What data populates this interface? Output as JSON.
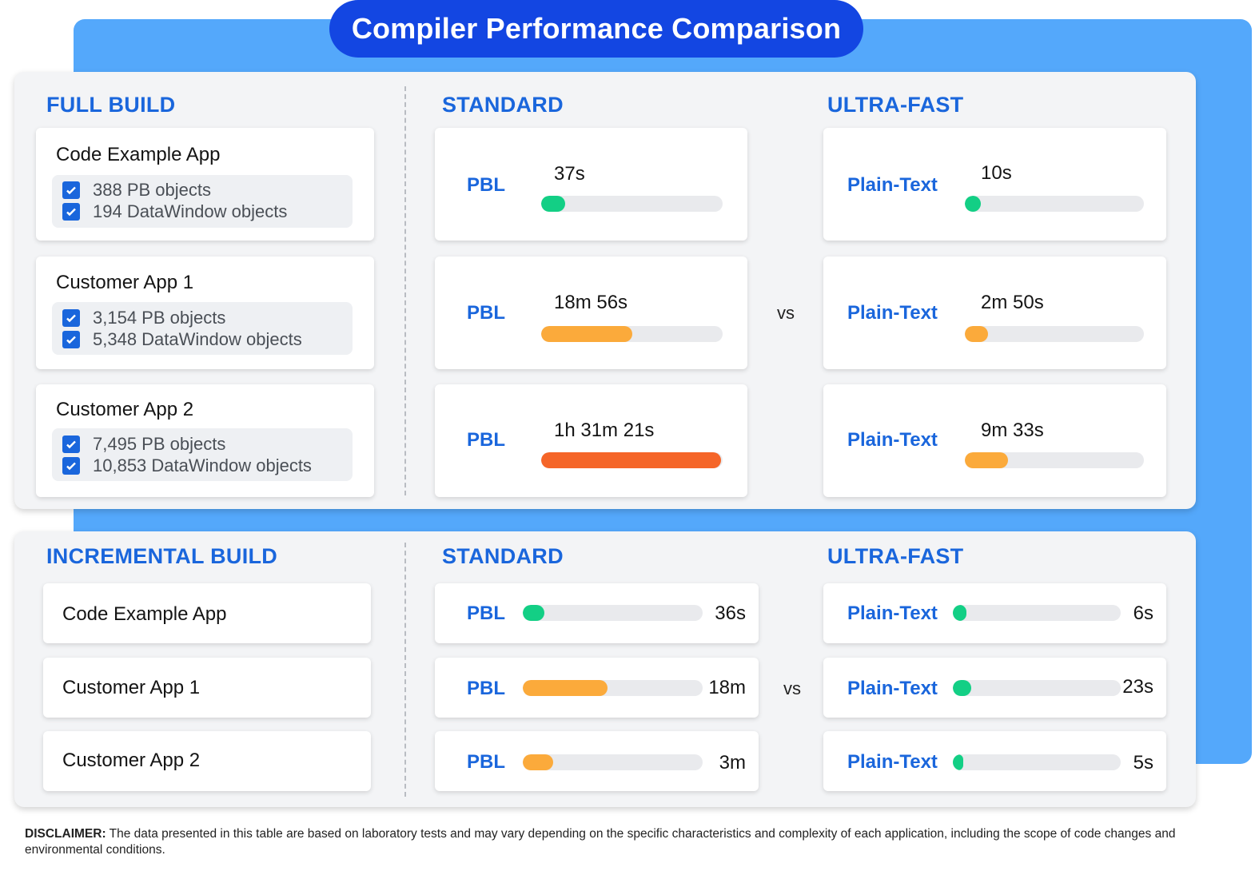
{
  "title": "Compiler Performance Comparison",
  "colors": {
    "accent_blue": "#1a66dc",
    "background_blue": "#54a8fb",
    "title_pill": "#1346e2",
    "green": "#13cf85",
    "orange": "#fbaa3b",
    "red_orange": "#f56528"
  },
  "full_build": {
    "section_title": "FULL BUILD",
    "standard_title": "STANDARD",
    "ultra_title": "ULTRA-FAST",
    "vs": "vs",
    "apps": [
      {
        "name": "Code Example App",
        "objects": [
          "388 PB objects",
          "194 DataWindow objects"
        ]
      },
      {
        "name": "Customer App 1",
        "objects": [
          "3,154 PB objects",
          "5,348 DataWindow objects"
        ]
      },
      {
        "name": "Customer App 2",
        "objects": [
          "7,495 PB objects",
          "10,853 DataWindow objects"
        ]
      }
    ]
  },
  "incremental_build": {
    "section_title": "INCREMENTAL BUILD",
    "standard_title": "STANDARD",
    "ultra_title": "ULTRA-FAST",
    "vs": "vs",
    "apps": [
      "Code Example App",
      "Customer App 1",
      "Customer App 2"
    ]
  },
  "chart_data": [
    {
      "type": "bar",
      "title": "FULL BUILD",
      "categories": [
        "Code Example App",
        "Customer App 1",
        "Customer App 2"
      ],
      "series": [
        {
          "name": "PBL",
          "labels": [
            "37s",
            "18m 56s",
            "1h 31m 21s"
          ],
          "values_seconds": [
            37,
            1136,
            5481
          ],
          "fill_fraction": [
            0.13,
            0.5,
            0.99
          ],
          "colors": [
            "#13cf85",
            "#fbaa3b",
            "#f56528"
          ]
        },
        {
          "name": "Plain-Text",
          "labels": [
            "10s",
            "2m 50s",
            "9m 33s"
          ],
          "values_seconds": [
            10,
            170,
            573
          ],
          "fill_fraction": [
            0.09,
            0.13,
            0.24
          ],
          "colors": [
            "#13cf85",
            "#fbaa3b",
            "#fbaa3b"
          ]
        }
      ]
    },
    {
      "type": "bar",
      "title": "INCREMENTAL BUILD",
      "categories": [
        "Code Example App",
        "Customer App 1",
        "Customer App 2"
      ],
      "series": [
        {
          "name": "PBL",
          "labels": [
            "36s",
            "18m",
            "3m"
          ],
          "values_seconds": [
            36,
            1080,
            180
          ],
          "fill_fraction": [
            0.12,
            0.47,
            0.17
          ],
          "colors": [
            "#13cf85",
            "#fbaa3b",
            "#fbaa3b"
          ]
        },
        {
          "name": "Plain-Text",
          "labels": [
            "6s",
            "23s",
            "5s"
          ],
          "values_seconds": [
            6,
            23,
            5
          ],
          "fill_fraction": [
            0.08,
            0.11,
            0.06
          ],
          "colors": [
            "#13cf85",
            "#13cf85",
            "#13cf85"
          ]
        }
      ]
    }
  ],
  "disclaimer": {
    "label": "DISCLAIMER:",
    "text": " The data presented in this table are based on laboratory tests and may vary depending on the specific characteristics and complexity of each application, including the scope of code changes and environmental conditions."
  }
}
